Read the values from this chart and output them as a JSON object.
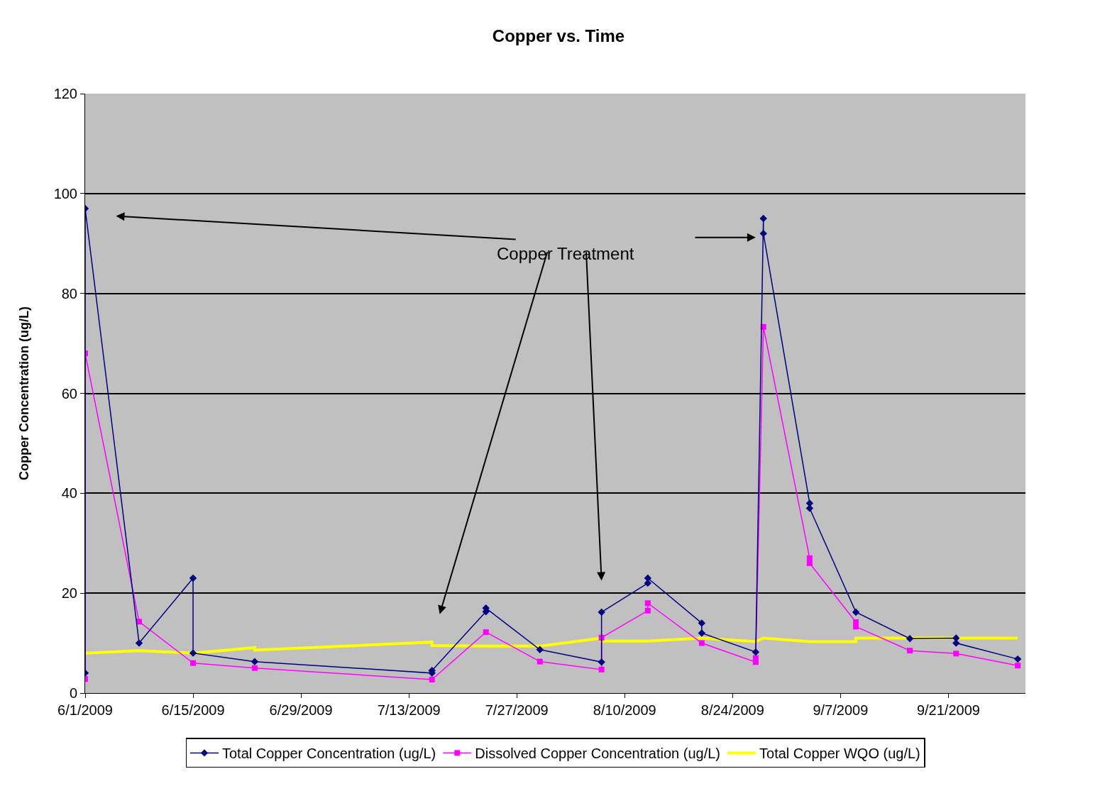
{
  "chart_data": {
    "type": "line",
    "title": "Copper vs. Time",
    "ylabel": "Copper Concentration (ug/L)",
    "xlim": [
      "2009-06-01",
      "2009-10-01"
    ],
    "xticks": [
      {
        "value": "2009-06-01",
        "label": "6/1/2009"
      },
      {
        "value": "2009-06-15",
        "label": "6/15/2009"
      },
      {
        "value": "2009-06-29",
        "label": "6/29/2009"
      },
      {
        "value": "2009-07-13",
        "label": "7/13/2009"
      },
      {
        "value": "2009-07-27",
        "label": "7/27/2009"
      },
      {
        "value": "2009-08-10",
        "label": "8/10/2009"
      },
      {
        "value": "2009-08-24",
        "label": "8/24/2009"
      },
      {
        "value": "2009-09-07",
        "label": "9/7/2009"
      },
      {
        "value": "2009-09-21",
        "label": "9/21/2009"
      }
    ],
    "ylim": [
      0,
      120
    ],
    "yticks": [
      0,
      20,
      40,
      60,
      80,
      100,
      120
    ],
    "grid": "y",
    "legend": "bottom",
    "annotations": [
      "Copper Treatment"
    ],
    "series": [
      {
        "name": "Total Copper Concentration (ug/L)",
        "color": "#000080",
        "marker": "diamond",
        "x": [
          "2009-06-01",
          "2009-06-01",
          "2009-06-08",
          "2009-06-15",
          "2009-06-15",
          "2009-06-23",
          "2009-07-16",
          "2009-07-16",
          "2009-07-23",
          "2009-07-23",
          "2009-07-30",
          "2009-08-07",
          "2009-08-07",
          "2009-08-13",
          "2009-08-13",
          "2009-08-20",
          "2009-08-20",
          "2009-08-27",
          "2009-08-28",
          "2009-08-28",
          "2009-09-03",
          "2009-09-03",
          "2009-09-09",
          "2009-09-16",
          "2009-09-22",
          "2009-09-22",
          "2009-09-30"
        ],
        "values": [
          4,
          97,
          10,
          23,
          8,
          6.3,
          4,
          4.5,
          16.3,
          17,
          8.7,
          6.2,
          16.2,
          22,
          23,
          14,
          12,
          8.2,
          95,
          92,
          38,
          37,
          16.2,
          10.9,
          11,
          10,
          6.8
        ]
      },
      {
        "name": "Dissolved Copper Concentration (ug/L)",
        "color": "#ff00ff",
        "marker": "square",
        "x": [
          "2009-06-01",
          "2009-06-01",
          "2009-06-08",
          "2009-06-15",
          "2009-06-23",
          "2009-07-16",
          "2009-07-23",
          "2009-07-30",
          "2009-08-07",
          "2009-08-07",
          "2009-08-13",
          "2009-08-13",
          "2009-08-20",
          "2009-08-27",
          "2009-08-27",
          "2009-08-28",
          "2009-09-03",
          "2009-09-03",
          "2009-09-09",
          "2009-09-09",
          "2009-09-16",
          "2009-09-22",
          "2009-09-30"
        ],
        "values": [
          2.8,
          68,
          14.3,
          6,
          5,
          2.7,
          12.2,
          6.3,
          4.7,
          11.1,
          16.5,
          18,
          10,
          6.2,
          7,
          73.3,
          27,
          26,
          14.2,
          13.3,
          8.5,
          7.9,
          5.5
        ]
      },
      {
        "name": "Total Copper WQO (ug/L)",
        "color": "#ffff00",
        "marker": "none",
        "x": [
          "2009-06-01",
          "2009-06-08",
          "2009-06-15",
          "2009-06-23",
          "2009-06-23",
          "2009-07-16",
          "2009-07-16",
          "2009-07-23",
          "2009-07-30",
          "2009-08-07",
          "2009-08-07",
          "2009-08-13",
          "2009-08-20",
          "2009-08-27",
          "2009-08-28",
          "2009-09-03",
          "2009-09-09",
          "2009-09-09",
          "2009-09-16",
          "2009-09-22",
          "2009-09-30"
        ],
        "values": [
          8,
          8.5,
          8,
          9.1,
          8.6,
          10.2,
          9.5,
          9.4,
          9.4,
          11,
          10.4,
          10.4,
          11,
          10.3,
          11,
          10.3,
          10.3,
          11,
          11,
          11,
          11
        ]
      }
    ]
  }
}
